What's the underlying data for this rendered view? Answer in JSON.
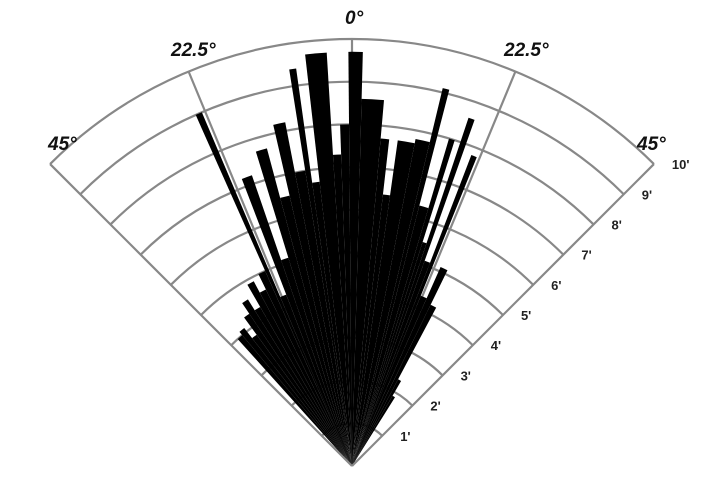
{
  "chart_data": {
    "type": "bar",
    "subtype": "polar-sector-histogram",
    "title": "",
    "angle_range": [
      -45,
      45
    ],
    "radial_range": [
      0,
      10
    ],
    "grid": true,
    "angle_tick_labels": [
      {
        "angle": -45,
        "label": "45°"
      },
      {
        "angle": -22.5,
        "label": "22.5°"
      },
      {
        "angle": 0,
        "label": "0°"
      },
      {
        "angle": 22.5,
        "label": "22.5°"
      },
      {
        "angle": 45,
        "label": "45°"
      }
    ],
    "radial_tick_labels": [
      "1'",
      "2'",
      "3'",
      "4'",
      "5'",
      "6'",
      "7'",
      "8'",
      "9'",
      "10'"
    ],
    "bins": [
      {
        "start": -42.0,
        "end": -40.0,
        "value": 4.0
      },
      {
        "start": -40.0,
        "end": -38.0,
        "value": 4.1
      },
      {
        "start": -38.0,
        "end": -36.0,
        "value": 3.8
      },
      {
        "start": -36.0,
        "end": -34.0,
        "value": 4.3
      },
      {
        "start": -34.0,
        "end": -32.0,
        "value": 4.6
      },
      {
        "start": -32.0,
        "end": -30.0,
        "value": 4.3
      },
      {
        "start": -30.0,
        "end": -28.0,
        "value": 4.9
      },
      {
        "start": -28.0,
        "end": -26.0,
        "value": 4.6
      },
      {
        "start": -26.0,
        "end": -24.0,
        "value": 5.0
      },
      {
        "start": -24.0,
        "end": -23.0,
        "value": 9.0
      },
      {
        "start": -23.0,
        "end": -21.0,
        "value": 4.3
      },
      {
        "start": -21.0,
        "end": -19.0,
        "value": 7.2
      },
      {
        "start": -19.0,
        "end": -17.0,
        "value": 5.1
      },
      {
        "start": -17.0,
        "end": -15.0,
        "value": 7.7
      },
      {
        "start": -15.0,
        "end": -13.0,
        "value": 6.5
      },
      {
        "start": -13.0,
        "end": -11.0,
        "value": 8.2
      },
      {
        "start": -11.0,
        "end": -9.0,
        "value": 7.0
      },
      {
        "start": -9.0,
        "end": -8.0,
        "value": 9.4
      },
      {
        "start": -8.0,
        "end": -6.5,
        "value": 6.7
      },
      {
        "start": -6.5,
        "end": -3.5,
        "value": 9.7
      },
      {
        "start": -3.5,
        "end": -2.0,
        "value": 7.3
      },
      {
        "start": -2.0,
        "end": -0.5,
        "value": 8.0
      },
      {
        "start": -0.5,
        "end": 1.5,
        "value": 9.7
      },
      {
        "start": 1.5,
        "end": 5.0,
        "value": 8.6
      },
      {
        "start": 5.0,
        "end": 6.5,
        "value": 7.7
      },
      {
        "start": 6.5,
        "end": 8.0,
        "value": 6.4
      },
      {
        "start": 8.0,
        "end": 11.0,
        "value": 7.7
      },
      {
        "start": 11.0,
        "end": 13.5,
        "value": 7.8
      },
      {
        "start": 13.5,
        "end": 14.5,
        "value": 9.1
      },
      {
        "start": 14.5,
        "end": 16.5,
        "value": 6.3
      },
      {
        "start": 16.5,
        "end": 17.5,
        "value": 8.0
      },
      {
        "start": 17.5,
        "end": 18.5,
        "value": 5.5
      },
      {
        "start": 18.5,
        "end": 19.5,
        "value": 8.6
      },
      {
        "start": 19.5,
        "end": 21.0,
        "value": 5.1
      },
      {
        "start": 21.0,
        "end": 22.0,
        "value": 7.8
      },
      {
        "start": 22.0,
        "end": 24.0,
        "value": 4.3
      },
      {
        "start": 24.0,
        "end": 26.0,
        "value": 5.1
      },
      {
        "start": 26.0,
        "end": 28.0,
        "value": 4.2
      },
      {
        "start": 28.0,
        "end": 30.0,
        "value": 2.3
      },
      {
        "start": 30.0,
        "end": 32.0,
        "value": 1.9
      }
    ]
  }
}
